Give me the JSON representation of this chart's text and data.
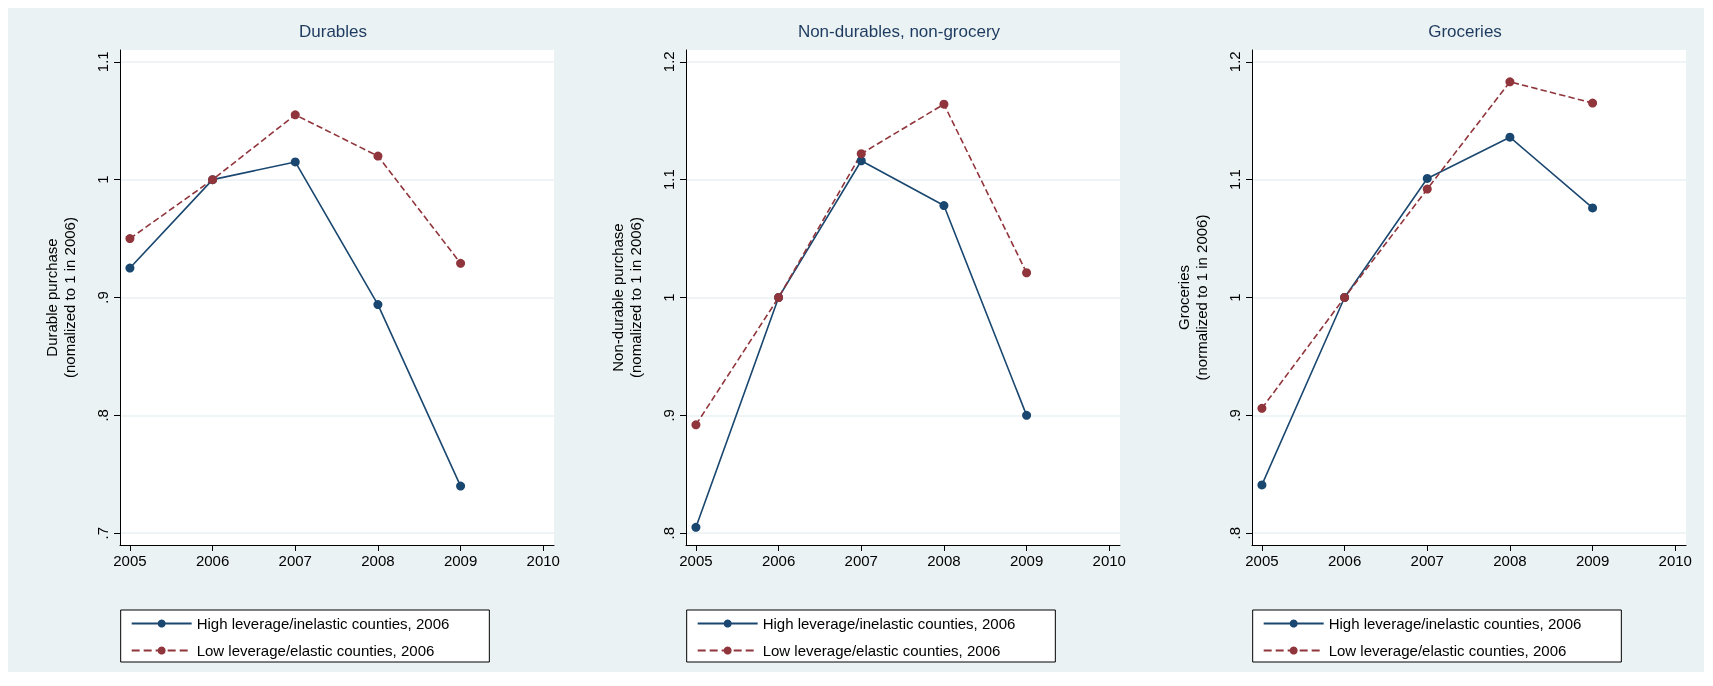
{
  "chart_data": [
    {
      "type": "line",
      "title": "Durables",
      "ylabel": "Durable purchase\n(nomalized to 1 in 2006)",
      "x": [
        2005,
        2006,
        2007,
        2008,
        2009
      ],
      "xlim": [
        2004.88,
        2010.13
      ],
      "xticks": [
        2005,
        2006,
        2007,
        2008,
        2009,
        2010
      ],
      "ylim": [
        0.69,
        1.11
      ],
      "yticks": [
        {
          "value": 0.7,
          "label": ".7"
        },
        {
          "value": 0.8,
          "label": ".8"
        },
        {
          "value": 0.9,
          "label": ".9"
        },
        1,
        1.1
      ],
      "grid": "y",
      "legend": "bottom",
      "marker": "circle",
      "series": [
        {
          "name": "High leverage/inelastic counties, 2006",
          "color": "#1a476f",
          "line_style": "solid",
          "values": [
            0.925,
            1.0,
            1.015,
            0.894,
            0.74
          ]
        },
        {
          "name": "Low leverage/elastic counties, 2006",
          "color": "#90353b",
          "line_style": "dashed",
          "values": [
            0.95,
            1.0,
            1.055,
            1.02,
            0.929
          ]
        }
      ]
    },
    {
      "type": "line",
      "title": "Non-durables, non-grocery",
      "ylabel": "Non-durable purchase\n(nomalized to 1 in 2006)",
      "x": [
        2005,
        2006,
        2007,
        2008,
        2009
      ],
      "xlim": [
        2004.88,
        2010.13
      ],
      "xticks": [
        2005,
        2006,
        2007,
        2008,
        2009,
        2010
      ],
      "ylim": [
        0.79,
        1.21
      ],
      "yticks": [
        {
          "value": 0.8,
          "label": ".8"
        },
        {
          "value": 0.9,
          "label": ".9"
        },
        1,
        1.1,
        1.2
      ],
      "grid": "y",
      "legend": "bottom",
      "marker": "circle",
      "series": [
        {
          "name": "High leverage/inelastic counties, 2006",
          "color": "#1a476f",
          "line_style": "solid",
          "values": [
            0.805,
            1.0,
            1.116,
            1.078,
            0.9
          ]
        },
        {
          "name": "Low leverage/elastic counties, 2006",
          "color": "#90353b",
          "line_style": "dashed",
          "values": [
            0.892,
            1.0,
            1.122,
            1.164,
            1.021
          ]
        }
      ]
    },
    {
      "type": "line",
      "title": "Groceries",
      "ylabel": "Groceries\n(normalized to 1 in 2006)",
      "x": [
        2005,
        2006,
        2007,
        2008,
        2009
      ],
      "xlim": [
        2004.88,
        2010.13
      ],
      "xticks": [
        2005,
        2006,
        2007,
        2008,
        2009,
        2010
      ],
      "ylim": [
        0.79,
        1.21
      ],
      "yticks": [
        {
          "value": 0.8,
          "label": ".8"
        },
        {
          "value": 0.9,
          "label": ".9"
        },
        1,
        1.1,
        1.2
      ],
      "grid": "y",
      "legend": "bottom",
      "marker": "circle",
      "series": [
        {
          "name": "High leverage/inelastic counties, 2006",
          "color": "#1a476f",
          "line_style": "solid",
          "values": [
            0.841,
            1.0,
            1.101,
            1.136,
            1.076
          ]
        },
        {
          "name": "Low leverage/elastic counties, 2006",
          "color": "#90353b",
          "line_style": "dashed",
          "values": [
            0.906,
            1.0,
            1.092,
            1.183,
            1.165
          ]
        }
      ]
    }
  ]
}
